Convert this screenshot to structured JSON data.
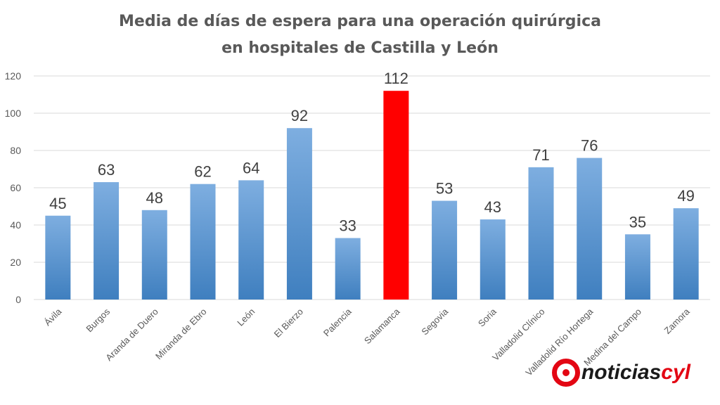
{
  "chart_data": {
    "type": "bar",
    "title_lines": [
      "Media de días de espera para una operación quirúrgica",
      "en hospitales de Castilla y León"
    ],
    "categories": [
      "Ávila",
      "Burgos",
      "Aranda de Duero",
      "Miranda de Ebro",
      "León",
      "El Bierzo",
      "Palencia",
      "Salamanca",
      "Segovia",
      "Soria",
      "Valladolid Clínico",
      "Valladolid Río Hortega",
      "Medina del Campo",
      "Zamora"
    ],
    "values": [
      45,
      63,
      48,
      62,
      64,
      92,
      33,
      112,
      53,
      43,
      71,
      76,
      35,
      49
    ],
    "ylim": [
      0,
      120
    ],
    "yticks": [
      0,
      20,
      40,
      60,
      80,
      100,
      120
    ],
    "grid": true,
    "highlight_index": 7,
    "colors": {
      "bar_top": "#7eaee0",
      "bar_bottom": "#3f7fbf",
      "highlight": "#ff0000"
    }
  },
  "logo": {
    "prefix": "noticias",
    "suffix": "cyl"
  }
}
